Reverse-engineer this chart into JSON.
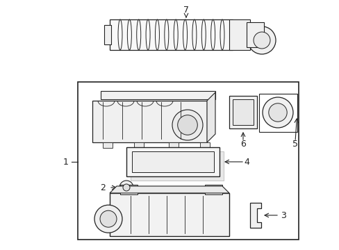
{
  "bg_color": "#ffffff",
  "line_color": "#222222",
  "fig_w": 4.89,
  "fig_h": 3.6,
  "dpi": 100
}
